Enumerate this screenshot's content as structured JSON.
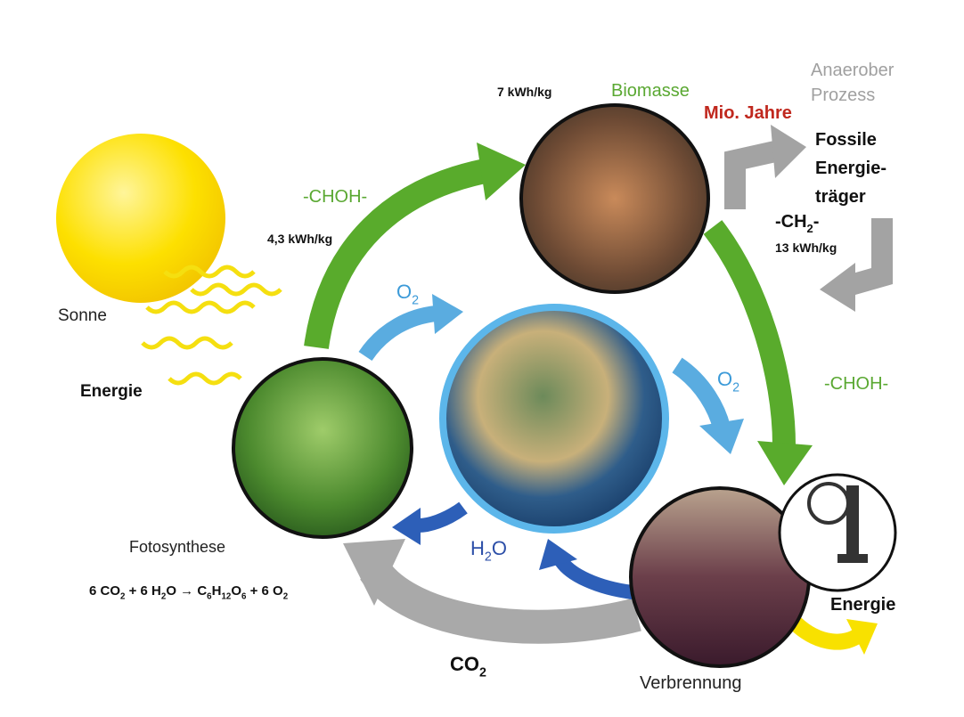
{
  "labels": {
    "sun": "Sonne",
    "energy_left": "Energie",
    "photosynthesis": "Fotosynthese",
    "formula": [
      {
        "t": "6 CO"
      },
      {
        "t": "2",
        "sub": true
      },
      {
        "t": " + 6 H"
      },
      {
        "t": "2",
        "sub": true
      },
      {
        "t": "O → C"
      },
      {
        "t": "6",
        "sub": true
      },
      {
        "t": "H"
      },
      {
        "t": "12",
        "sub": true
      },
      {
        "t": "O"
      },
      {
        "t": "6",
        "sub": true
      },
      {
        "t": " + 6 O"
      },
      {
        "t": "2",
        "sub": true
      }
    ],
    "choh_left": "-CHOH-",
    "energy_low": "4,3 kWh/kg",
    "biomass_energy": "7 kWh/kg",
    "biomass": "Biomasse",
    "anaerobic": [
      "Anaerober",
      "Prozess"
    ],
    "mio_jahre": "Mio. Jahre",
    "fossil": [
      "Fossile",
      "Energie-",
      "träger"
    ],
    "ch2": [
      {
        "t": "-CH"
      },
      {
        "t": "2",
        "sub": true
      },
      {
        "t": "-"
      }
    ],
    "fossil_energy": "13 kWh/kg",
    "choh_right": "-CHOH-",
    "o2_left": [
      {
        "t": "O"
      },
      {
        "t": "2",
        "sub": true
      }
    ],
    "o2_right": [
      {
        "t": "O"
      },
      {
        "t": "2",
        "sub": true
      }
    ],
    "h2o": [
      {
        "t": "H"
      },
      {
        "t": "2",
        "sub": true
      },
      {
        "t": "O"
      }
    ],
    "co2": [
      {
        "t": "CO"
      },
      {
        "t": "2",
        "sub": true
      }
    ],
    "energy_right": "Energie",
    "combustion": "Verbrennung"
  }
}
